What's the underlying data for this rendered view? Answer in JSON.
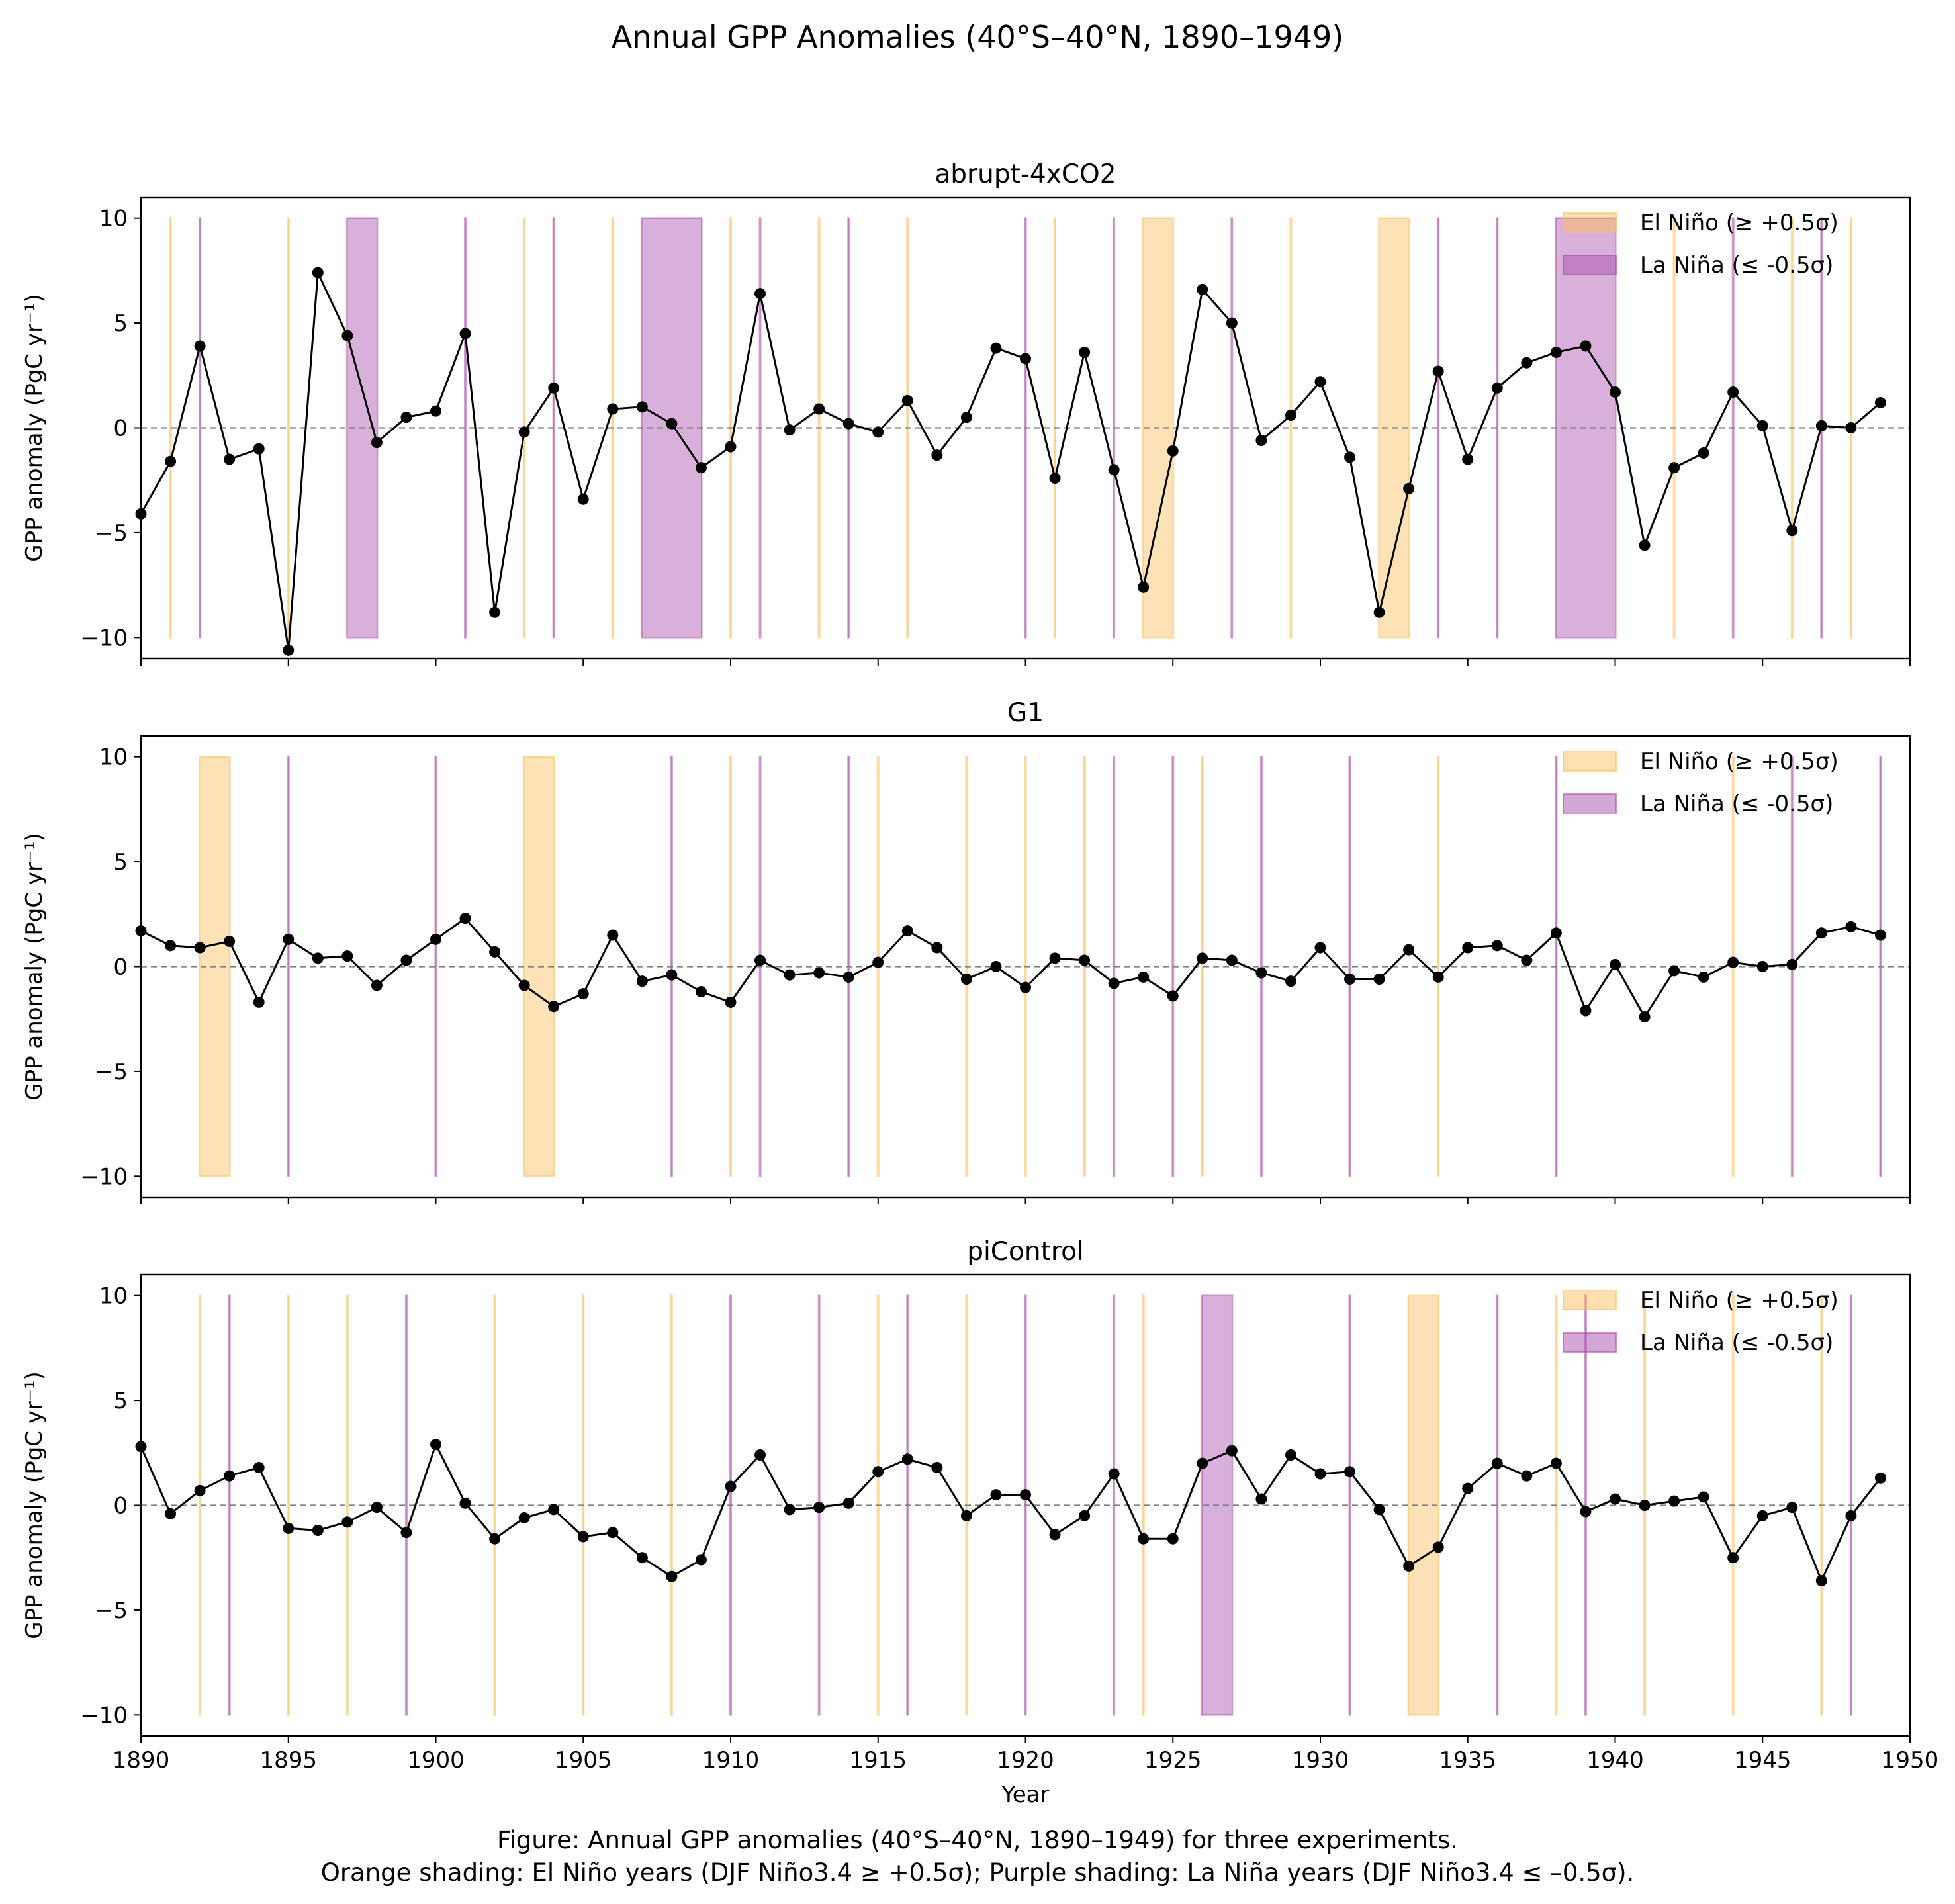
{
  "figure": {
    "title": "Annual GPP Anomalies (40°S–40°N, 1890–1949)",
    "caption_line1": "Figure: Annual GPP anomalies (40°S–40°N, 1890–1949) for three experiments.",
    "caption_line2": "Orange shading: El Niño years (DJF Niño3.4 ≥ +0.5σ); Purple shading: La Niña years (DJF Niño3.4 ≤ –0.5σ)."
  },
  "colors": {
    "el_nino": "#fdbf5f",
    "la_nina": "#ab4fad",
    "line": "#000000",
    "zero_line": "#808080"
  },
  "chart_data": [
    {
      "type": "line",
      "title": "abrupt-4xCO2",
      "xlabel": "",
      "ylabel": "GPP anomaly (PgC yr⁻¹)",
      "xlim": [
        1890,
        1950
      ],
      "ylim": [
        -11,
        11
      ],
      "xticks": [
        1890,
        1895,
        1900,
        1905,
        1910,
        1915,
        1920,
        1925,
        1930,
        1935,
        1940,
        1945,
        1950
      ],
      "xticklabels_visible": false,
      "yticks": [
        -10,
        -5,
        0,
        5,
        10
      ],
      "ytick_labels": [
        "−10",
        "−5",
        "0",
        "5",
        "10"
      ],
      "zero_line": true,
      "legend": {
        "position": "top-right",
        "entries": [
          "El Niño (≥ +0.5σ)",
          "La Niña (≤ -0.5σ)"
        ]
      },
      "x": [
        1890,
        1891,
        1892,
        1893,
        1894,
        1895,
        1896,
        1897,
        1898,
        1899,
        1900,
        1901,
        1902,
        1903,
        1904,
        1905,
        1906,
        1907,
        1908,
        1909,
        1910,
        1911,
        1912,
        1913,
        1914,
        1915,
        1916,
        1917,
        1918,
        1919,
        1920,
        1921,
        1922,
        1923,
        1924,
        1925,
        1926,
        1927,
        1928,
        1929,
        1930,
        1931,
        1932,
        1933,
        1934,
        1935,
        1936,
        1937,
        1938,
        1939,
        1940,
        1941,
        1942,
        1943,
        1944,
        1945,
        1946,
        1947,
        1948,
        1949
      ],
      "series": [
        {
          "values": [
            -4.1,
            -1.6,
            3.9,
            -1.5,
            -1.0,
            -10.6,
            7.4,
            4.4,
            -0.7,
            0.5,
            0.8,
            4.5,
            -8.8,
            -0.2,
            1.9,
            -3.4,
            0.9,
            1.0,
            0.2,
            -1.9,
            -0.9,
            6.4,
            -0.1,
            0.9,
            0.2,
            -0.2,
            1.3,
            -1.3,
            0.5,
            3.8,
            3.3,
            -2.4,
            3.6,
            -2.0,
            -7.6,
            -1.1,
            6.6,
            5.0,
            -0.6,
            0.6,
            2.2,
            -1.4,
            -8.8,
            -2.9,
            2.7,
            -1.5,
            1.9,
            3.1,
            3.6,
            3.9,
            1.7,
            -5.6,
            -1.9,
            -1.2,
            1.7,
            0.1,
            -4.9,
            0.1,
            0.0,
            1.2
          ]
        }
      ],
      "el_nino_spans": [
        [
          1891,
          1891
        ],
        [
          1895,
          1895
        ],
        [
          1903,
          1903
        ],
        [
          1906,
          1906
        ],
        [
          1910,
          1910
        ],
        [
          1913,
          1913
        ],
        [
          1916,
          1916
        ],
        [
          1921,
          1921
        ],
        [
          1924,
          1925
        ],
        [
          1929,
          1929
        ],
        [
          1932,
          1933
        ],
        [
          1942,
          1942
        ],
        [
          1946,
          1946
        ],
        [
          1948,
          1948
        ]
      ],
      "la_nina_spans": [
        [
          1892,
          1892
        ],
        [
          1897,
          1898
        ],
        [
          1901,
          1901
        ],
        [
          1904,
          1904
        ],
        [
          1907,
          1909
        ],
        [
          1911,
          1911
        ],
        [
          1914,
          1914
        ],
        [
          1920,
          1920
        ],
        [
          1923,
          1923
        ],
        [
          1927,
          1927
        ],
        [
          1934,
          1934
        ],
        [
          1936,
          1936
        ],
        [
          1938,
          1940
        ],
        [
          1944,
          1944
        ],
        [
          1947,
          1947
        ]
      ]
    },
    {
      "type": "line",
      "title": "G1",
      "xlabel": "",
      "ylabel": "GPP anomaly (PgC yr⁻¹)",
      "xlim": [
        1890,
        1950
      ],
      "ylim": [
        -11,
        11
      ],
      "xticks": [
        1890,
        1895,
        1900,
        1905,
        1910,
        1915,
        1920,
        1925,
        1930,
        1935,
        1940,
        1945,
        1950
      ],
      "xticklabels_visible": false,
      "yticks": [
        -10,
        -5,
        0,
        5,
        10
      ],
      "ytick_labels": [
        "−10",
        "−5",
        "0",
        "5",
        "10"
      ],
      "zero_line": true,
      "legend": {
        "position": "top-right",
        "entries": [
          "El Niño (≥ +0.5σ)",
          "La Niña (≤ -0.5σ)"
        ]
      },
      "x": [
        1890,
        1891,
        1892,
        1893,
        1894,
        1895,
        1896,
        1897,
        1898,
        1899,
        1900,
        1901,
        1902,
        1903,
        1904,
        1905,
        1906,
        1907,
        1908,
        1909,
        1910,
        1911,
        1912,
        1913,
        1914,
        1915,
        1916,
        1917,
        1918,
        1919,
        1920,
        1921,
        1922,
        1923,
        1924,
        1925,
        1926,
        1927,
        1928,
        1929,
        1930,
        1931,
        1932,
        1933,
        1934,
        1935,
        1936,
        1937,
        1938,
        1939,
        1940,
        1941,
        1942,
        1943,
        1944,
        1945,
        1946,
        1947,
        1948,
        1949
      ],
      "series": [
        {
          "values": [
            1.7,
            1.0,
            0.9,
            1.2,
            -1.7,
            1.3,
            0.4,
            0.5,
            -0.9,
            0.3,
            1.3,
            2.3,
            0.7,
            -0.9,
            -1.9,
            -1.3,
            1.5,
            -0.7,
            -0.4,
            -1.2,
            -1.7,
            0.3,
            -0.4,
            -0.3,
            -0.5,
            0.2,
            1.7,
            0.9,
            -0.6,
            0.0,
            -1.0,
            0.4,
            0.3,
            -0.8,
            -0.5,
            -1.4,
            0.4,
            0.3,
            -0.3,
            -0.7,
            0.9,
            -0.6,
            -0.6,
            0.8,
            -0.5,
            0.9,
            1.0,
            0.3,
            1.6,
            -2.1,
            0.1,
            -2.4,
            -0.2,
            -0.5,
            0.2,
            0.0,
            0.1,
            1.6,
            1.9,
            1.5
          ]
        }
      ],
      "el_nino_spans": [
        [
          1892,
          1893
        ],
        [
          1903,
          1904
        ],
        [
          1910,
          1910
        ],
        [
          1915,
          1915
        ],
        [
          1918,
          1918
        ],
        [
          1920,
          1920
        ],
        [
          1922,
          1922
        ],
        [
          1926,
          1926
        ],
        [
          1934,
          1934
        ],
        [
          1944,
          1944
        ]
      ],
      "la_nina_spans": [
        [
          1895,
          1895
        ],
        [
          1900,
          1900
        ],
        [
          1908,
          1908
        ],
        [
          1911,
          1911
        ],
        [
          1914,
          1914
        ],
        [
          1923,
          1923
        ],
        [
          1925,
          1925
        ],
        [
          1928,
          1928
        ],
        [
          1931,
          1931
        ],
        [
          1938,
          1938
        ],
        [
          1946,
          1946
        ],
        [
          1949,
          1949
        ]
      ]
    },
    {
      "type": "line",
      "title": "piControl",
      "xlabel": "Year",
      "ylabel": "GPP anomaly (PgC yr⁻¹)",
      "xlim": [
        1890,
        1950
      ],
      "ylim": [
        -11,
        11
      ],
      "xticks": [
        1890,
        1895,
        1900,
        1905,
        1910,
        1915,
        1920,
        1925,
        1930,
        1935,
        1940,
        1945,
        1950
      ],
      "xticklabels_visible": true,
      "yticks": [
        -10,
        -5,
        0,
        5,
        10
      ],
      "ytick_labels": [
        "−10",
        "−5",
        "0",
        "5",
        "10"
      ],
      "zero_line": true,
      "legend": {
        "position": "top-right",
        "entries": [
          "El Niño (≥ +0.5σ)",
          "La Niña (≤ -0.5σ)"
        ]
      },
      "x": [
        1890,
        1891,
        1892,
        1893,
        1894,
        1895,
        1896,
        1897,
        1898,
        1899,
        1900,
        1901,
        1902,
        1903,
        1904,
        1905,
        1906,
        1907,
        1908,
        1909,
        1910,
        1911,
        1912,
        1913,
        1914,
        1915,
        1916,
        1917,
        1918,
        1919,
        1920,
        1921,
        1922,
        1923,
        1924,
        1925,
        1926,
        1927,
        1928,
        1929,
        1930,
        1931,
        1932,
        1933,
        1934,
        1935,
        1936,
        1937,
        1938,
        1939,
        1940,
        1941,
        1942,
        1943,
        1944,
        1945,
        1946,
        1947,
        1948,
        1949
      ],
      "series": [
        {
          "values": [
            2.8,
            -0.4,
            0.7,
            1.4,
            1.8,
            -1.1,
            -1.2,
            -0.8,
            -0.1,
            -1.3,
            2.9,
            0.1,
            -1.6,
            -0.6,
            -0.2,
            -1.5,
            -1.3,
            -2.5,
            -3.4,
            -2.6,
            0.9,
            2.4,
            -0.2,
            -0.1,
            0.1,
            1.6,
            2.2,
            1.8,
            -0.5,
            0.5,
            0.5,
            -1.4,
            -0.5,
            1.5,
            -1.6,
            -1.6,
            2.0,
            2.6,
            0.3,
            2.4,
            1.5,
            1.6,
            -0.2,
            -2.9,
            -2.0,
            0.8,
            2.0,
            1.4,
            2.0,
            -0.3,
            0.3,
            0.0,
            0.2,
            0.4,
            -2.5,
            -0.5,
            -0.1,
            -3.6,
            -0.5,
            1.3
          ]
        }
      ],
      "el_nino_spans": [
        [
          1892,
          1892
        ],
        [
          1895,
          1895
        ],
        [
          1897,
          1897
        ],
        [
          1902,
          1902
        ],
        [
          1905,
          1905
        ],
        [
          1908,
          1908
        ],
        [
          1915,
          1915
        ],
        [
          1918,
          1918
        ],
        [
          1924,
          1924
        ],
        [
          1933,
          1934
        ],
        [
          1938,
          1938
        ],
        [
          1941,
          1941
        ],
        [
          1944,
          1944
        ],
        [
          1947,
          1947
        ]
      ],
      "la_nina_spans": [
        [
          1893,
          1893
        ],
        [
          1899,
          1899
        ],
        [
          1910,
          1910
        ],
        [
          1913,
          1913
        ],
        [
          1916,
          1916
        ],
        [
          1920,
          1920
        ],
        [
          1923,
          1923
        ],
        [
          1926,
          1927
        ],
        [
          1931,
          1931
        ],
        [
          1936,
          1936
        ],
        [
          1939,
          1939
        ],
        [
          1948,
          1948
        ]
      ]
    }
  ]
}
